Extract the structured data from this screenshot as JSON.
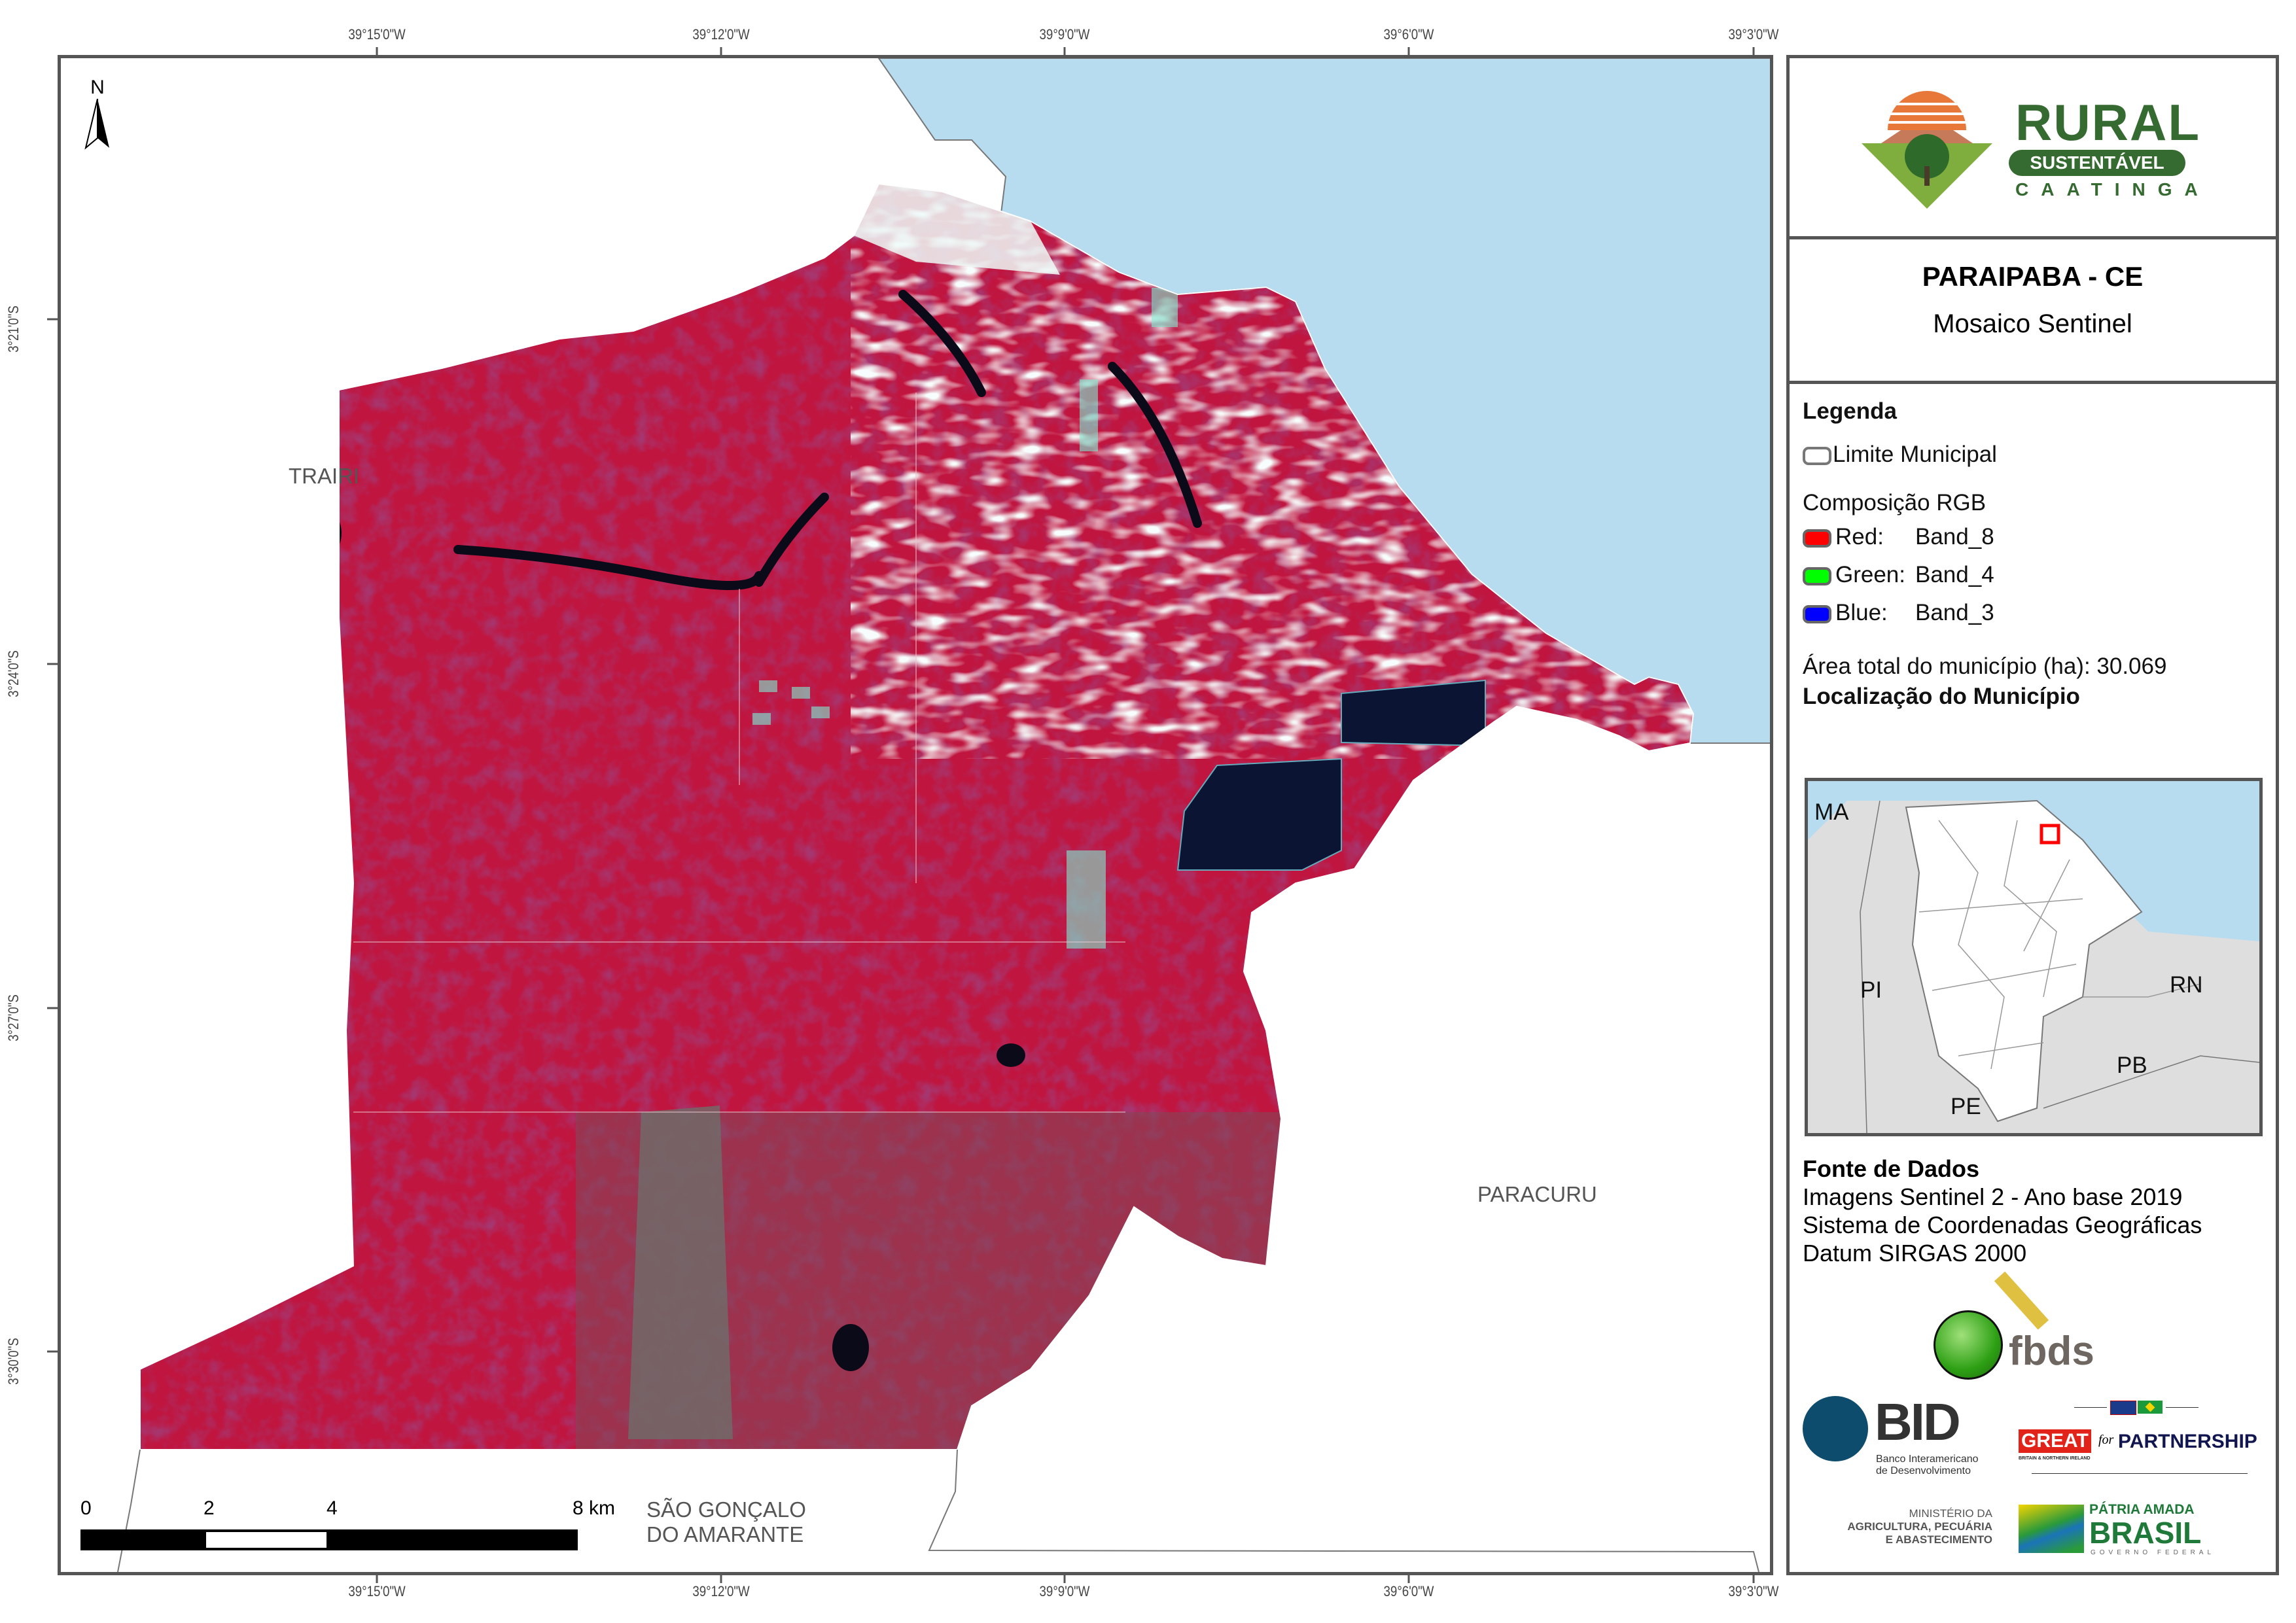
{
  "graticule": {
    "longitudes": [
      "39°15'0\"W",
      "39°12'0\"W",
      "39°9'0\"W",
      "39°6'0\"W",
      "39°3'0\"W"
    ],
    "latitudes": [
      "3°21'0\"S",
      "3°24'0\"S",
      "3°27'0\"S",
      "3°30'0\"S"
    ]
  },
  "map": {
    "north_arrow": "N",
    "neighbors": {
      "trairi": "TRAIRI",
      "paracuru": "PARACURU",
      "sao_goncalo_1": "SÃO GONÇALO",
      "sao_goncalo_2": "DO AMARANTE"
    },
    "scale_bar": {
      "labels": [
        "0",
        "2",
        "4",
        "8"
      ],
      "unit": "km"
    },
    "colors": {
      "sea": "#b7dcf0",
      "vegetation": "#c0153f",
      "dunes": "#eefaf8",
      "ponds": "#0b1433"
    }
  },
  "panel": {
    "logo": {
      "line1": "RURAL",
      "line2": "SUSTENTÁVEL",
      "line3": "CAATINGA"
    },
    "title": "PARAIPABA - CE",
    "subtitle": "Mosaico Sentinel",
    "legend": {
      "heading": "Legenda",
      "limit_label": "Limite Municipal",
      "rgb_heading": "Composição RGB",
      "bands": [
        {
          "channel": "Red:",
          "band": "Band_8",
          "color": "#ff0000"
        },
        {
          "channel": "Green:",
          "band": "Band_4",
          "color": "#00ff00"
        },
        {
          "channel": "Blue:",
          "band": "Band_3",
          "color": "#0000ff"
        }
      ],
      "area_label": "Área total do município (ha):",
      "area_value": "30.069"
    },
    "location": {
      "heading": "Localização do Município",
      "states": {
        "ma": "MA",
        "pi": "PI",
        "rn": "RN",
        "pb": "PB",
        "pe": "PE"
      }
    },
    "sources": {
      "heading": "Fonte de Dados",
      "lines": [
        "Imagens Sentinel 2 - Ano base 2019",
        "Sistema de Coordenadas Geográficas",
        "Datum SIRGAS 2000"
      ]
    },
    "partners": {
      "fbds": "fbds",
      "bid": "BID",
      "bid_sub1": "Banco Interamericano",
      "bid_sub2": "de Desenvolvimento",
      "great": "GREAT",
      "great_for": "for",
      "great_partnership": "PARTNERSHIP",
      "great_sub": "BRITAIN & NORTHERN IRELAND",
      "ministry1": "MINISTÉRIO DA",
      "ministry2": "AGRICULTURA, PECUÁRIA",
      "ministry3": "E ABASTECIMENTO",
      "brasil1": "PÁTRIA AMADA",
      "brasil2": "BRASIL",
      "brasil3": "GOVERNO FEDERAL"
    }
  }
}
